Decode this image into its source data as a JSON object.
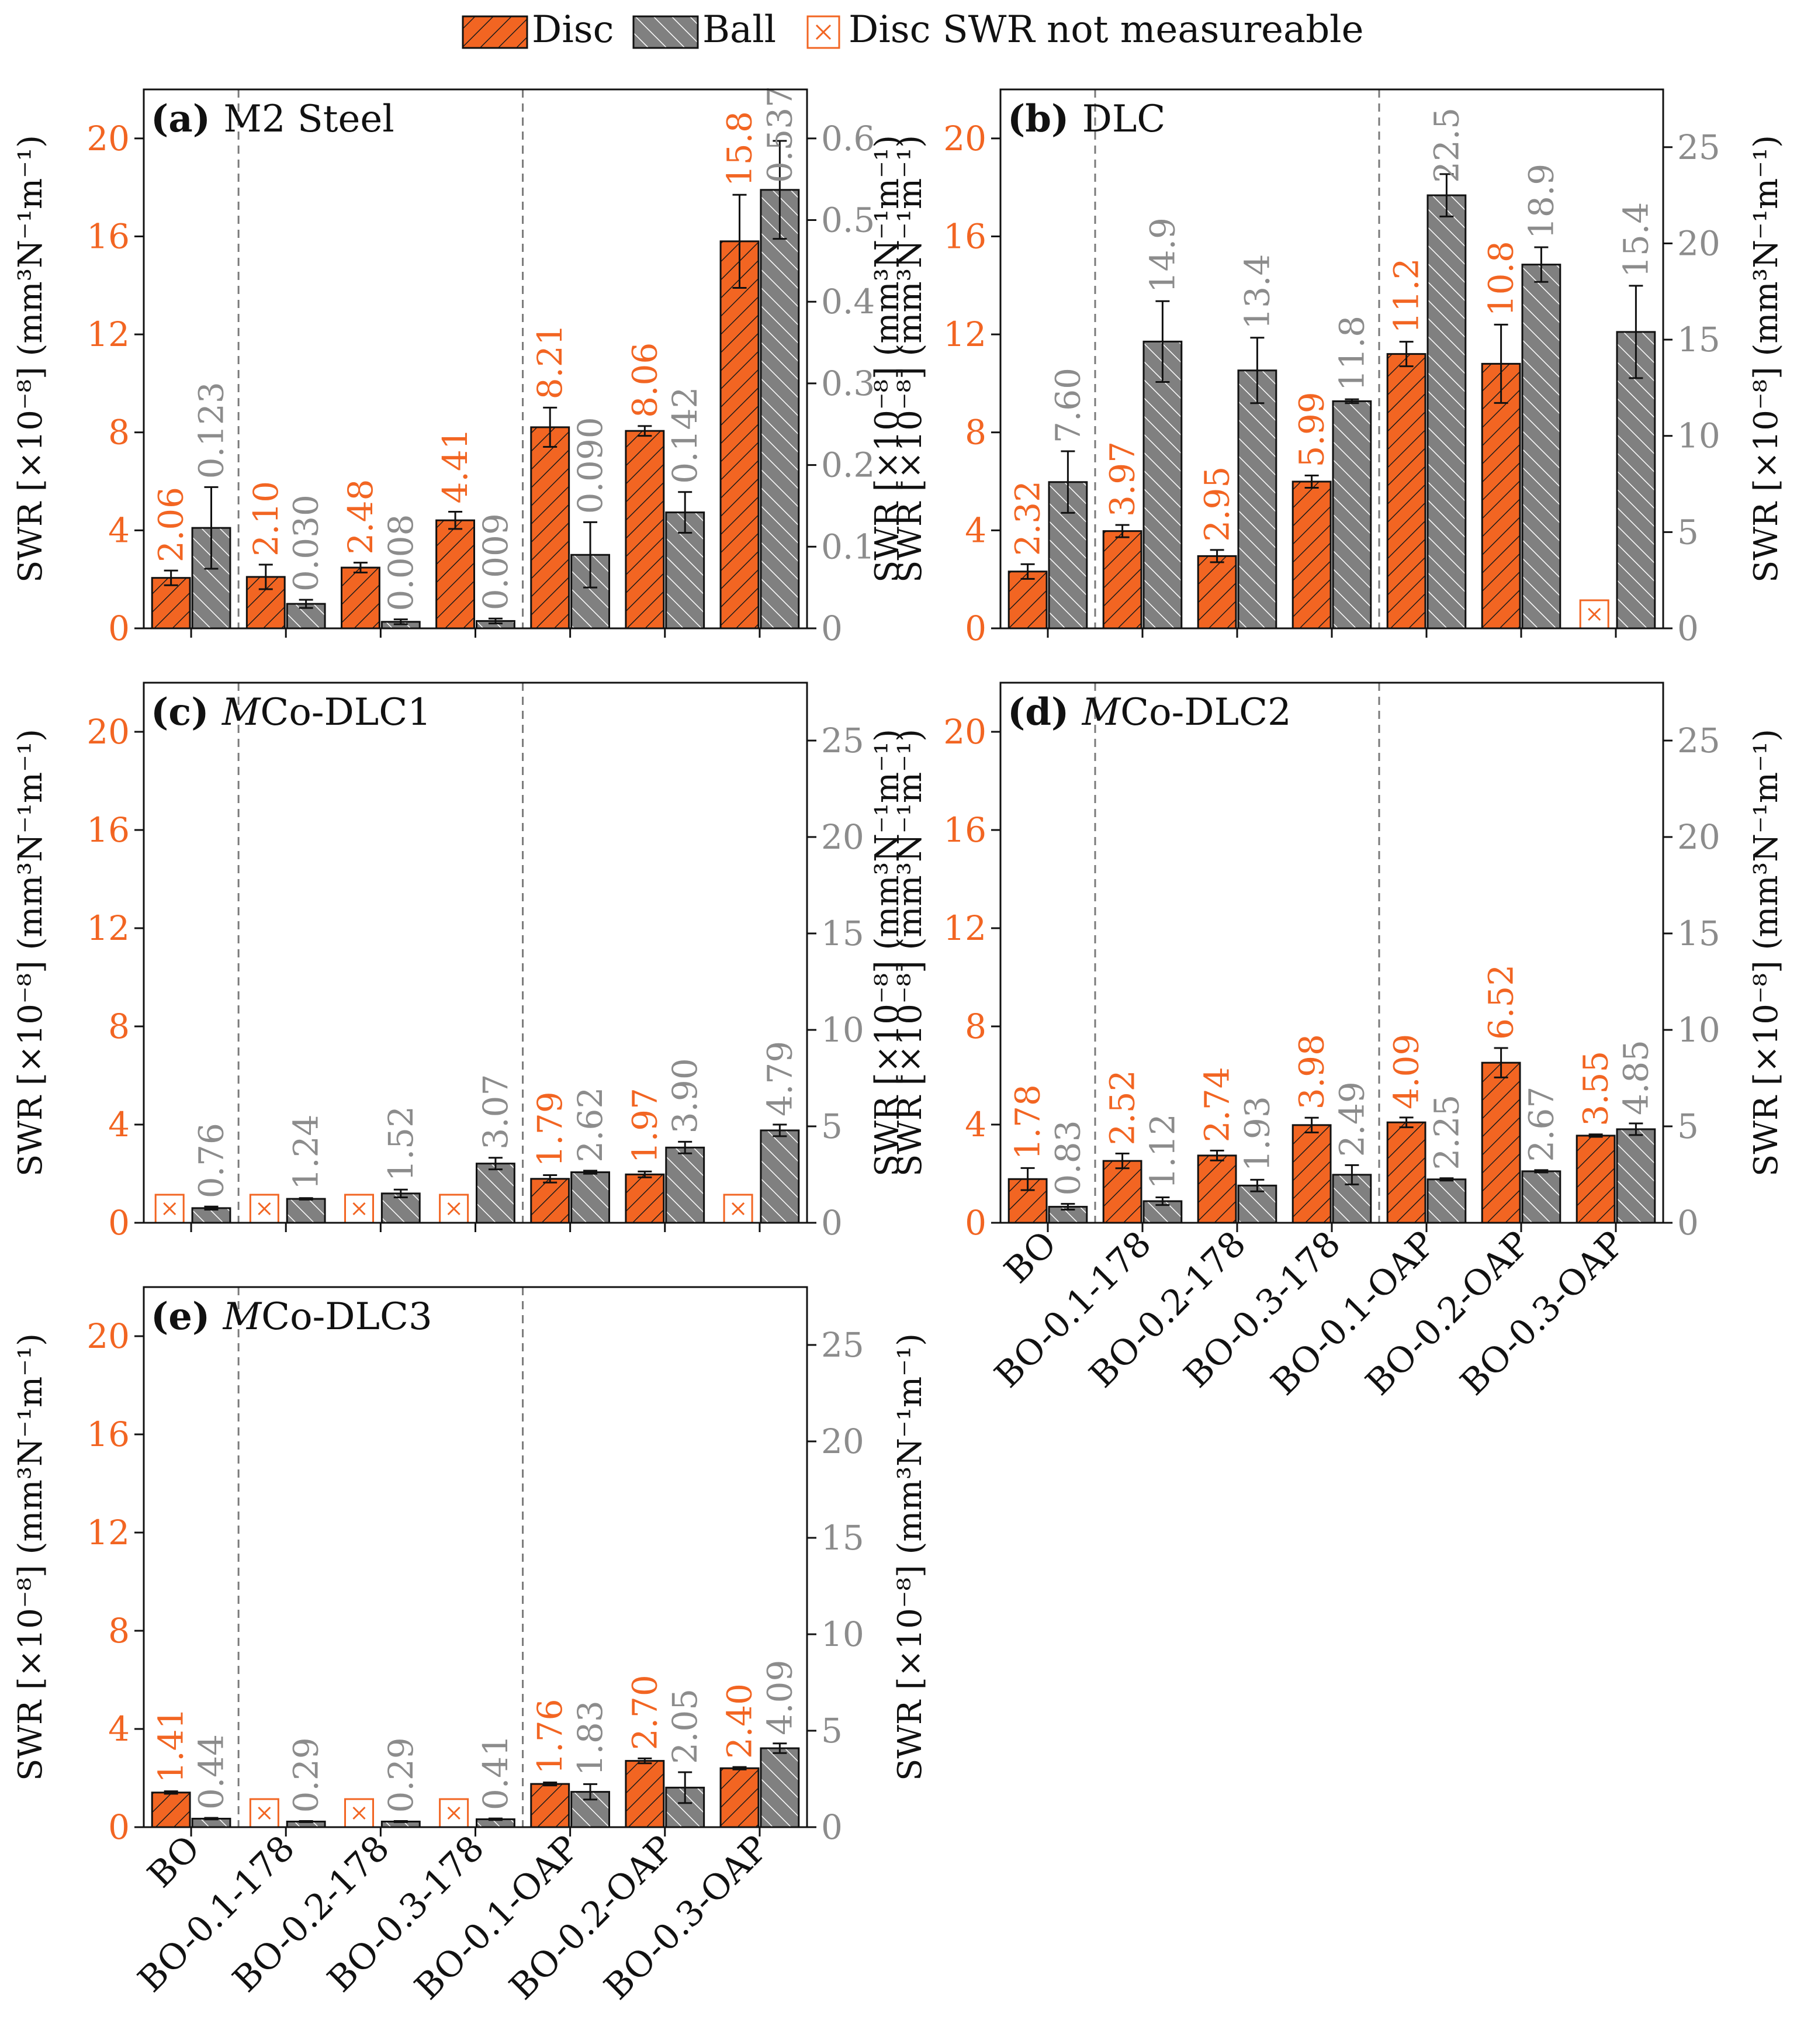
{
  "categories": [
    "BO",
    "BO-0.1-178",
    "BO-0.2-178",
    "BO-0.3-178",
    "BO-0.1-OAP",
    "BO-0.2-OAP",
    "BO-0.3-OAP"
  ],
  "legend": {
    "disc": "Disc",
    "ball": "Ball",
    "not_measurable": "Disc SWR not measureable"
  },
  "axes": {
    "left_label": "SWR [×10⁻⁸] (mm³N⁻¹m⁻¹)",
    "right_label": "SWR [×10⁻⁸] (mm³N⁻¹m⁻¹)"
  },
  "colors": {
    "disc": "#f26522",
    "ball": "#7f7f7f",
    "disc_label": "#f26522",
    "ball_label": "#8c8c8c",
    "divider": "#7a7a7a"
  },
  "chart_data": [
    {
      "type": "bar",
      "panel": "(a)",
      "title": "M2 Steel",
      "categories": [
        "BO",
        "BO-0.1-178",
        "BO-0.2-178",
        "BO-0.3-178",
        "BO-0.1-OAP",
        "BO-0.2-OAP",
        "BO-0.3-OAP"
      ],
      "series": [
        {
          "name": "Disc",
          "axis": "left",
          "values": [
            2.06,
            2.1,
            2.48,
            4.41,
            8.21,
            8.06,
            15.8
          ],
          "errors": [
            0.3,
            0.5,
            0.2,
            0.35,
            0.8,
            0.2,
            1.9
          ],
          "labels": [
            "2.06",
            "2.10",
            "2.48",
            "4.41",
            "8.21",
            "8.06",
            "15.8"
          ]
        },
        {
          "name": "Ball",
          "axis": "right",
          "values": [
            0.123,
            0.03,
            0.008,
            0.009,
            0.09,
            0.142,
            0.537
          ],
          "errors": [
            0.05,
            0.005,
            0.003,
            0.003,
            0.04,
            0.025,
            0.06
          ],
          "labels": [
            "0.123",
            "0.030",
            "0.008",
            "0.009",
            "0.090",
            "0.142",
            "0.537"
          ]
        }
      ],
      "ylim_left": [
        0,
        22
      ],
      "yticks_left": [
        0,
        4,
        8,
        12,
        16,
        20
      ],
      "ylim_right": [
        0,
        0.66
      ],
      "yticks_right": [
        0,
        0.1,
        0.2,
        0.3,
        0.4,
        0.5,
        0.6
      ],
      "ytick_labels_right": [
        "0",
        "0.1",
        "0.2",
        "0.3",
        "0.4",
        "0.5",
        "0.6"
      ],
      "show_xlabels": false
    },
    {
      "type": "bar",
      "panel": "(b)",
      "title": "DLC",
      "categories": [
        "BO",
        "BO-0.1-178",
        "BO-0.2-178",
        "BO-0.3-178",
        "BO-0.1-OAP",
        "BO-0.2-OAP",
        "BO-0.3-OAP"
      ],
      "series": [
        {
          "name": "Disc",
          "axis": "left",
          "values": [
            2.32,
            3.97,
            2.95,
            5.99,
            11.2,
            10.8,
            null
          ],
          "errors": [
            0.3,
            0.25,
            0.25,
            0.25,
            0.5,
            1.6,
            null
          ],
          "labels": [
            "2.32",
            "3.97",
            "2.95",
            "5.99",
            "11.2",
            "10.8",
            ""
          ]
        },
        {
          "name": "Ball",
          "axis": "right",
          "values": [
            7.6,
            14.9,
            13.4,
            11.8,
            22.5,
            18.9,
            15.4
          ],
          "errors": [
            1.6,
            2.1,
            1.7,
            0.1,
            1.1,
            0.9,
            2.4
          ],
          "labels": [
            "7.60",
            "14.9",
            "13.4",
            "11.8",
            "22.5",
            "18.9",
            "15.4"
          ]
        }
      ],
      "ylim_left": [
        0,
        22
      ],
      "yticks_left": [
        0,
        4,
        8,
        12,
        16,
        20
      ],
      "ylim_right": [
        0,
        28
      ],
      "yticks_right": [
        0,
        5,
        10,
        15,
        20,
        25
      ],
      "ytick_labels_right": [
        "0",
        "5",
        "10",
        "15",
        "20",
        "25"
      ],
      "show_xlabels": false
    },
    {
      "type": "bar",
      "panel": "(c)",
      "title": "MCo-DLC1",
      "categories": [
        "BO",
        "BO-0.1-178",
        "BO-0.2-178",
        "BO-0.3-178",
        "BO-0.1-OAP",
        "BO-0.2-OAP",
        "BO-0.3-OAP"
      ],
      "series": [
        {
          "name": "Disc",
          "axis": "left",
          "values": [
            null,
            null,
            null,
            null,
            1.79,
            1.97,
            null
          ],
          "errors": [
            null,
            null,
            null,
            null,
            0.15,
            0.12,
            null
          ],
          "labels": [
            "",
            "",
            "",
            "",
            "1.79",
            "1.97",
            ""
          ]
        },
        {
          "name": "Ball",
          "axis": "right",
          "values": [
            0.76,
            1.24,
            1.52,
            3.07,
            2.62,
            3.9,
            4.79
          ],
          "errors": [
            0.08,
            0.04,
            0.2,
            0.3,
            0.08,
            0.3,
            0.3
          ],
          "labels": [
            "0.76",
            "1.24",
            "1.52",
            "3.07",
            "2.62",
            "3.90",
            "4.79"
          ]
        }
      ],
      "ylim_left": [
        0,
        22
      ],
      "yticks_left": [
        0,
        4,
        8,
        12,
        16,
        20
      ],
      "ylim_right": [
        0,
        28
      ],
      "yticks_right": [
        0,
        5,
        10,
        15,
        20,
        25
      ],
      "ytick_labels_right": [
        "0",
        "5",
        "10",
        "15",
        "20",
        "25"
      ],
      "show_xlabels": false
    },
    {
      "type": "bar",
      "panel": "(d)",
      "title": "MCo-DLC2",
      "categories": [
        "BO",
        "BO-0.1-178",
        "BO-0.2-178",
        "BO-0.3-178",
        "BO-0.1-OAP",
        "BO-0.2-OAP",
        "BO-0.3-OAP"
      ],
      "series": [
        {
          "name": "Disc",
          "axis": "left",
          "values": [
            1.78,
            2.52,
            2.74,
            3.98,
            4.09,
            6.52,
            3.55
          ],
          "errors": [
            0.45,
            0.3,
            0.2,
            0.3,
            0.2,
            0.6,
            0.05
          ],
          "labels": [
            "1.78",
            "2.52",
            "2.74",
            "3.98",
            "4.09",
            "6.52",
            "3.55"
          ]
        },
        {
          "name": "Ball",
          "axis": "right",
          "values": [
            0.83,
            1.12,
            1.93,
            2.49,
            2.25,
            2.67,
            4.85
          ],
          "errors": [
            0.15,
            0.2,
            0.3,
            0.5,
            0.06,
            0.06,
            0.3
          ],
          "labels": [
            "0.83",
            "1.12",
            "1.93",
            "2.49",
            "2.25",
            "2.67",
            "4.85"
          ]
        }
      ],
      "ylim_left": [
        0,
        22
      ],
      "yticks_left": [
        0,
        4,
        8,
        12,
        16,
        20
      ],
      "ylim_right": [
        0,
        28
      ],
      "yticks_right": [
        0,
        5,
        10,
        15,
        20,
        25
      ],
      "ytick_labels_right": [
        "0",
        "5",
        "10",
        "15",
        "20",
        "25"
      ],
      "show_xlabels": true
    },
    {
      "type": "bar",
      "panel": "(e)",
      "title": "MCo-DLC3",
      "categories": [
        "BO",
        "BO-0.1-178",
        "BO-0.2-178",
        "BO-0.3-178",
        "BO-0.1-OAP",
        "BO-0.2-OAP",
        "BO-0.3-OAP"
      ],
      "series": [
        {
          "name": "Disc",
          "axis": "left",
          "values": [
            1.41,
            null,
            null,
            null,
            1.76,
            2.7,
            2.4
          ],
          "errors": [
            0.05,
            null,
            null,
            null,
            0.06,
            0.1,
            0.05
          ],
          "labels": [
            "1.41",
            "",
            "",
            "",
            "1.76",
            "2.70",
            "2.40"
          ]
        },
        {
          "name": "Ball",
          "axis": "right",
          "values": [
            0.44,
            0.29,
            0.29,
            0.41,
            1.83,
            2.05,
            4.09
          ],
          "errors": [
            0.04,
            0.03,
            0.03,
            0.04,
            0.4,
            0.8,
            0.25
          ],
          "labels": [
            "0.44",
            "0.29",
            "0.29",
            "0.41",
            "1.83",
            "2.05",
            "4.09"
          ]
        }
      ],
      "ylim_left": [
        0,
        22
      ],
      "yticks_left": [
        0,
        4,
        8,
        12,
        16,
        20
      ],
      "ylim_right": [
        0,
        28
      ],
      "yticks_right": [
        0,
        5,
        10,
        15,
        20,
        25
      ],
      "ytick_labels_right": [
        "0",
        "5",
        "10",
        "15",
        "20",
        "25"
      ],
      "show_xlabels": true
    }
  ]
}
